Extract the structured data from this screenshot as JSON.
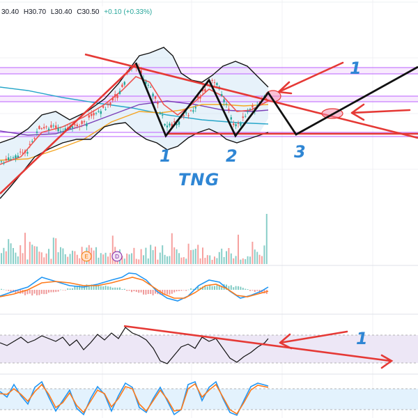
{
  "ohlc": {
    "open": "30.40",
    "high": "H30.70",
    "low": "L30.40",
    "close": "C30.50",
    "change": "+0.10 (+0.33%)"
  },
  "annotations": {
    "label_1_top": "1",
    "label_1_bottom": "1",
    "label_2": "2",
    "label_3": "3",
    "label_1_rsi": "1",
    "ticker": "TNG"
  },
  "events": {
    "earnings": "E",
    "dividend": "D"
  },
  "colors": {
    "up": "#26a69a",
    "down": "#ef5350",
    "annotation_red": "#e53935",
    "annotation_black": "#111111",
    "annotation_blue": "#2f86d4",
    "bollinger": "#111111",
    "ma_fast": "#ef5350",
    "ma_mid": "#f5a623",
    "ma_slow": "#7b3fb8",
    "ma_long": "#26a6c9",
    "macd": "#2196f3",
    "signal": "#ff7a1a",
    "zone_purple": "#c77dff",
    "rsi_band": "#ede7f6",
    "stoch_band": "#e3f2fd"
  },
  "chart_data": {
    "type": "candlestick",
    "panes": [
      "price",
      "volume",
      "macd",
      "rsi",
      "stochastic"
    ],
    "pattern_labels": [
      "1",
      "2",
      "3"
    ],
    "last_bar": {
      "open": 30.4,
      "high": 30.7,
      "low": 30.4,
      "close": 30.5,
      "change": 0.1,
      "change_pct": 0.33
    },
    "indicators": [
      "Bollinger Bands",
      "Moving averages",
      "Volume",
      "MACD",
      "RSI",
      "Stochastic"
    ],
    "grid": true
  }
}
